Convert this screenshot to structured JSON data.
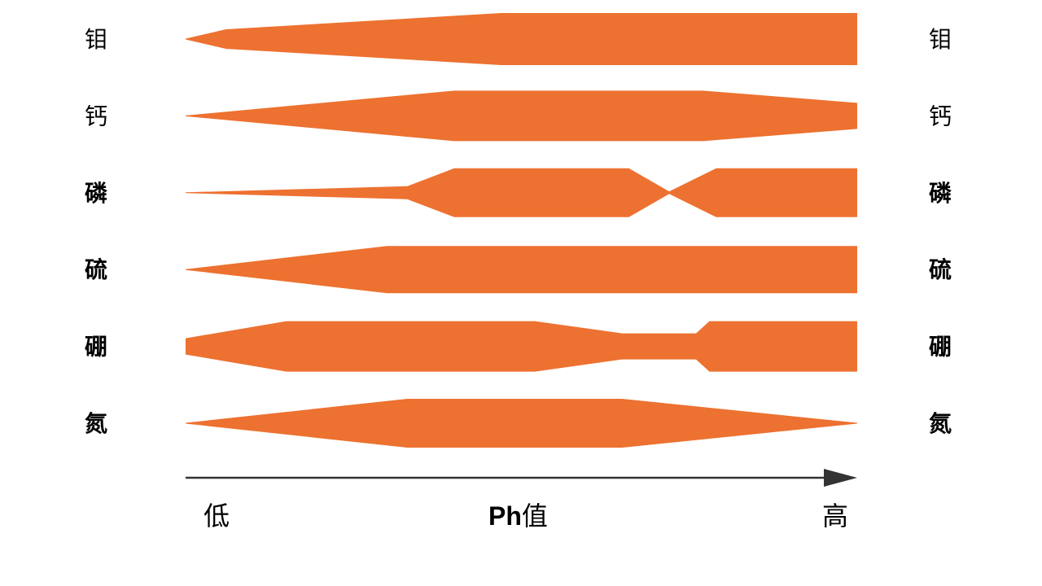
{
  "band_color": "#ED7130",
  "axis_color": "#333333",
  "elements": [
    {
      "name": "钼",
      "bold": false,
      "profile": [
        [
          0,
          0.5
        ],
        [
          0.06,
          12
        ],
        [
          0.47,
          32
        ],
        [
          1.0,
          32
        ]
      ]
    },
    {
      "name": "钙",
      "bold": false,
      "profile": [
        [
          0,
          0.5
        ],
        [
          0.4,
          31
        ],
        [
          0.77,
          31
        ],
        [
          1.0,
          16
        ]
      ]
    },
    {
      "name": "磷",
      "bold": true,
      "profile": [
        [
          0,
          0.5
        ],
        [
          0.33,
          8
        ],
        [
          0.4,
          30
        ],
        [
          0.66,
          30
        ],
        [
          0.72,
          1.5
        ],
        [
          0.79,
          30
        ],
        [
          1.0,
          30
        ]
      ]
    },
    {
      "name": "硫",
      "bold": true,
      "profile": [
        [
          0,
          0.5
        ],
        [
          0.3,
          29
        ],
        [
          1.0,
          29
        ]
      ]
    },
    {
      "name": "硼",
      "bold": true,
      "profile": [
        [
          0,
          10
        ],
        [
          0.15,
          31
        ],
        [
          0.52,
          31
        ],
        [
          0.65,
          16
        ],
        [
          0.76,
          16
        ],
        [
          0.78,
          31
        ],
        [
          1.0,
          31
        ]
      ]
    },
    {
      "name": "氮",
      "bold": true,
      "profile": [
        [
          0,
          0.5
        ],
        [
          0.33,
          30
        ],
        [
          0.65,
          30
        ],
        [
          1.0,
          0.5
        ]
      ]
    }
  ],
  "axis": {
    "low": "低",
    "title_en": "Ph",
    "title_cn": "值",
    "high": "高"
  }
}
